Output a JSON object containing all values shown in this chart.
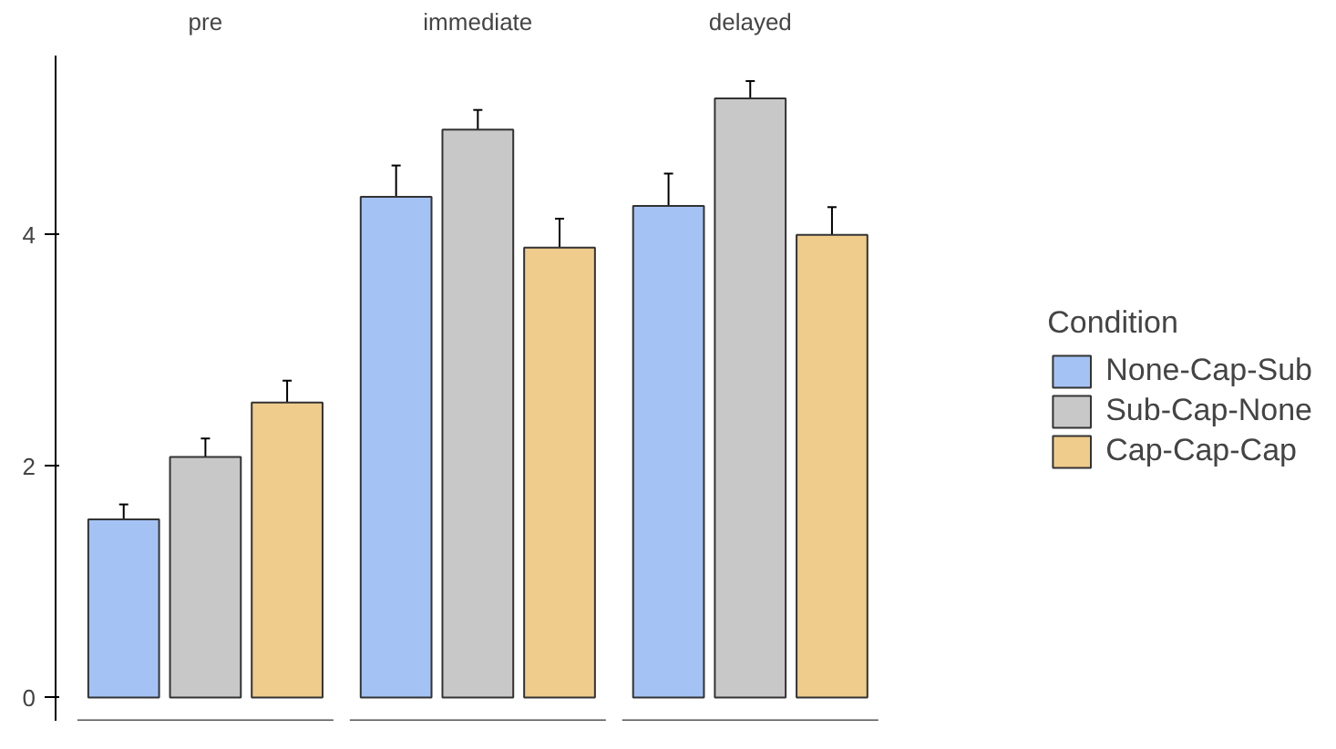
{
  "chart_data": {
    "type": "bar",
    "categories": [
      "pre",
      "immediate",
      "delayed"
    ],
    "legend_title": "Condition",
    "legend": "right",
    "grid": false,
    "ylim": [
      -0.2,
      5.55
    ],
    "yticks": [
      0,
      2,
      4
    ],
    "series": [
      {
        "name": "None-Cap-Sub",
        "color": "#a4c2f4",
        "values": [
          1.54,
          4.33,
          4.25
        ],
        "errors": [
          0.13,
          0.27,
          0.28
        ]
      },
      {
        "name": "Sub-Cap-None",
        "color": "#c8c8c8",
        "values": [
          2.08,
          4.91,
          5.18
        ],
        "errors": [
          0.16,
          0.17,
          0.15
        ]
      },
      {
        "name": "Cap-Cap-Cap",
        "color": "#f0cc8c",
        "values": [
          2.55,
          3.89,
          4.0
        ],
        "errors": [
          0.19,
          0.25,
          0.24
        ]
      }
    ]
  }
}
